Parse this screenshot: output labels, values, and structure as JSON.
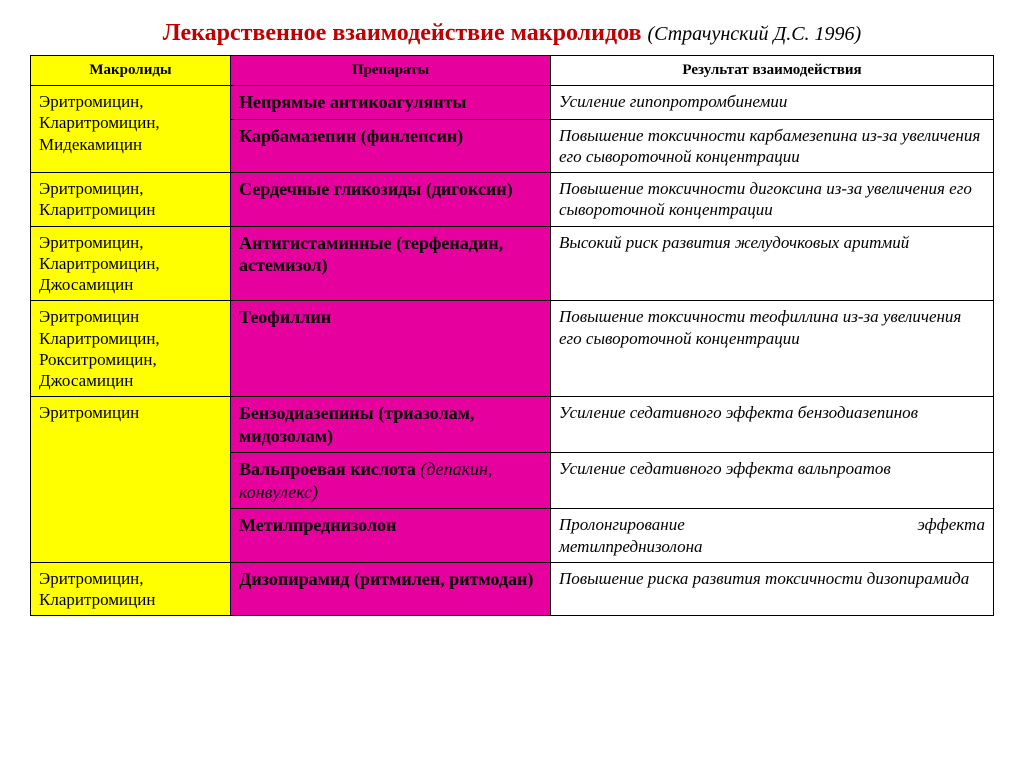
{
  "title": {
    "main": "Лекарственное взаимодействие макролидов ",
    "sub": "(Страчунский Д.С. 1996)"
  },
  "colors": {
    "title_main": "#c00000",
    "yellow": "#ffff00",
    "magenta": "#e6009e",
    "border": "#000000",
    "text": "#000000",
    "bg": "#ffffff"
  },
  "columns": {
    "macro": "Макролиды",
    "drug": "Препараты",
    "result": "Результат взаимодействия"
  },
  "rows": [
    {
      "macro": "Эритромицин, Кларитромицин, Мидекамицин",
      "macro_rowspan": 2,
      "drug": "Непрямые антикоагулянты",
      "result": "Усиление гипопротромбинемии"
    },
    {
      "drug": "Карбамазепин (финлепсин)",
      "result": "Повышение токсичности карбамезепина из-за увеличения его сывороточной концентрации"
    },
    {
      "macro": "Эритромицин, Кларитромицин",
      "macro_rowspan": 1,
      "drug": "Сердечные гликозиды (дигоксин)",
      "result": "Повышение токсичности дигоксина из-за увеличения его сывороточной концентрации"
    },
    {
      "macro": "Эритромицин, Кларитромицин, Джосамицин",
      "macro_rowspan": 1,
      "drug": "Антигистаминные (терфенадин, астемизол)",
      "result": "Высокий риск развития желудочковых аритмий"
    },
    {
      "macro": "Эритромицин Кларитромицин, Рокситромицин, Джосамицин",
      "macro_rowspan": 1,
      "drug": "Теофиллин",
      "result": "Повышение токсичности теофиллина из-за увеличения его сывороточной концентрации"
    },
    {
      "macro": "Эритромицин",
      "macro_rowspan": 3,
      "drug": "Бензодиазепины (триазолам, мидозолам)",
      "result": "Усиление седативного эффекта бензодиазепинов"
    },
    {
      "drug_main": "Вальпроевая кислота ",
      "drug_paren_italic": "(депакин, конвулекс)",
      "result": "Усиление седативного эффекта вальпроатов"
    },
    {
      "drug": "Метилпреднизолон",
      "result_spaced": true,
      "result_left": "Пролонгирование",
      "result_right": "эффекта",
      "result_line2": "метилпреднизолона"
    },
    {
      "macro": "Эритромицин, Кларитромицин",
      "macro_rowspan": 1,
      "drug": "Дизопирамид (ритмилен, ритмодан)",
      "result": "Повышение риска развития токсичности дизопирамида"
    }
  ],
  "typography": {
    "title_main_size": 24,
    "title_sub_size": 20,
    "header_size": 15,
    "macro_size": 17,
    "drug_size": 18,
    "result_size": 17
  }
}
